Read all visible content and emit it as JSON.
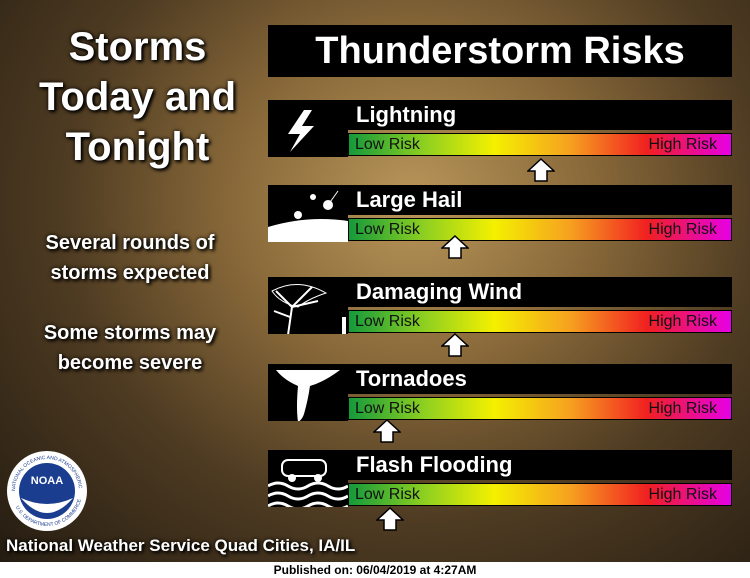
{
  "title": "Thunderstorm Risks",
  "left": {
    "heading": [
      "Storms",
      "Today and",
      "Tonight"
    ],
    "notes": [
      "Several rounds of storms expected",
      "Some storms may become severe"
    ]
  },
  "risks": [
    {
      "label": "Lightning",
      "low": "Low Risk",
      "high": "High Risk"
    },
    {
      "label": "Large Hail",
      "low": "Low Risk",
      "high": "High Risk"
    },
    {
      "label": "Damaging Wind",
      "low": "Low Risk",
      "high": "High Risk"
    },
    {
      "label": "Tornadoes",
      "low": "Low Risk",
      "high": "High Risk"
    },
    {
      "label": "Flash Flooding",
      "low": "Low Risk",
      "high": "High Risk"
    }
  ],
  "logo": {
    "label": "NOAA",
    "ring_top": "NATIONAL OCEANIC AND ATMOSPHERIC ADMINISTRATION",
    "ring_bottom": "U.S. DEPARTMENT OF COMMERCE"
  },
  "footer": "National Weather Service Quad Cities, IA/IL",
  "published": "Published on: 06/04/2019 at 4:27AM"
}
